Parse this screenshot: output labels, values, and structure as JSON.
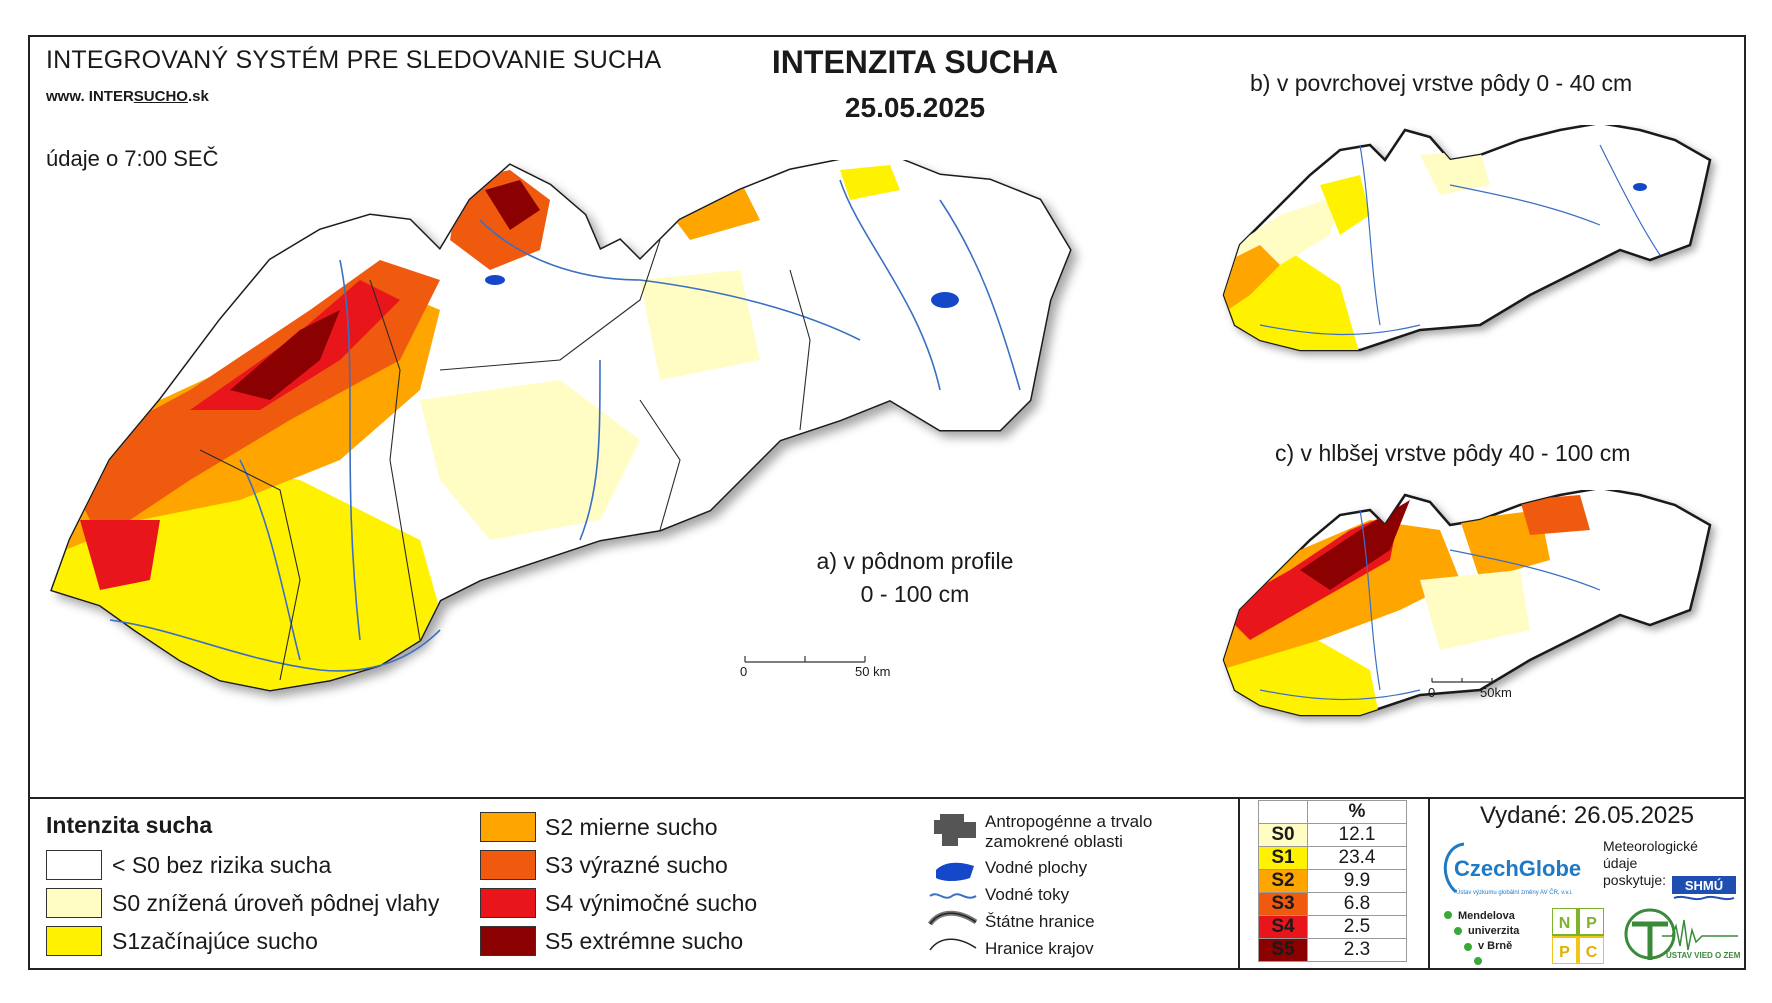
{
  "header": {
    "system_title": "INTEGROVANÝ SYSTÉM PRE SLEDOVANIE SUCHA",
    "www_prefix": "www. INTER",
    "www_brand": "SUCHO",
    "www_suffix": ".sk",
    "data_note": "údaje o 7:00 SEČ",
    "main_title": "INTENZITA SUCHA",
    "date": "25.05.2025"
  },
  "maps": {
    "a_caption_line1": "a) v pôdnom profile",
    "a_caption_line2": "0 - 100 cm",
    "b_caption": "b) v povrchovej vrstve pôdy 0 - 40 cm",
    "c_caption": "c) v hlbšej vrstve pôdy 40 - 100 cm",
    "scale_main_zero": "0",
    "scale_main_end": "50 km",
    "scale_small_zero": "0",
    "scale_small_end": "50km"
  },
  "legend": {
    "title": "Intenzita sucha",
    "classes": [
      {
        "label": "< S0 bez rizika sucha",
        "color": "#ffffff"
      },
      {
        "label": "S0 znížená úroveň pôdnej vlahy",
        "color": "#fffcc4"
      },
      {
        "label": "S1začínajúce sucho",
        "color": "#fff200"
      },
      {
        "label": "S2 mierne sucho",
        "color": "#ffa500"
      },
      {
        "label": "S3 výrazné sucho",
        "color": "#f05a0f"
      },
      {
        "label": "S4 výnimočné sucho",
        "color": "#e8161b"
      },
      {
        "label": "S5 extrémne sucho",
        "color": "#8b0000"
      }
    ],
    "symbols": [
      {
        "label_line1": "Antropogénne a trvalo",
        "label_line2": "zamokrené oblasti"
      },
      {
        "label_line1": "Vodné plochy",
        "label_line2": ""
      },
      {
        "label_line1": "Vodné toky",
        "label_line2": ""
      },
      {
        "label_line1": "Štátne hranice",
        "label_line2": ""
      },
      {
        "label_line1": "Hranice krajov",
        "label_line2": ""
      }
    ]
  },
  "percent_table": {
    "header": "%",
    "rows": [
      {
        "cls": "S0",
        "value": "12.1",
        "color": "#fffcc4"
      },
      {
        "cls": "S1",
        "value": "23.4",
        "color": "#fff200"
      },
      {
        "cls": "S2",
        "value": "9.9",
        "color": "#ffa500"
      },
      {
        "cls": "S3",
        "value": "6.8",
        "color": "#f05a0f"
      },
      {
        "cls": "S4",
        "value": "2.5",
        "color": "#e8161b"
      },
      {
        "cls": "S5",
        "value": "2.3",
        "color": "#8b0000"
      }
    ]
  },
  "footer": {
    "issued": "Vydané: 26.05.2025",
    "meteo_line1": "Meteorologické",
    "meteo_line2": "údaje",
    "meteo_line3": "poskytuje:",
    "czechglobe": "CzechGlobe",
    "czechglobe_sub": "Ústav výzkumu globální změny AV ČR, v.v.i.",
    "shmu": "SHMÚ",
    "mendel_1": "Mendelova",
    "mendel_2": "univerzita",
    "mendel_3": "v Brně",
    "nppc": [
      "N",
      "P",
      "P",
      "C"
    ],
    "uvz": "ÚSTAV VIED O ZEMI"
  }
}
